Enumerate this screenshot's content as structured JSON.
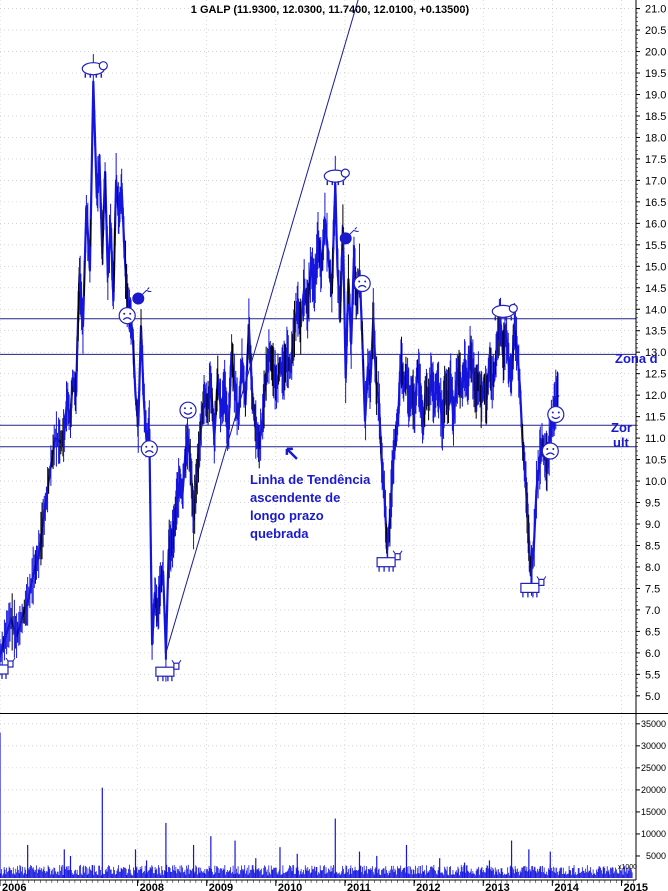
{
  "chart_data": {
    "type": "line",
    "title": "1 GALP (11.9300, 12.0300, 11.7400, 12.0100, +0.13500)",
    "price_axis": {
      "ylim": [
        4.6,
        21.2
      ],
      "ticks": [
        "5.0",
        "5.5",
        "6.0",
        "6.5",
        "7.0",
        "7.5",
        "8.0",
        "8.5",
        "9.0",
        "9.5",
        "10.0",
        "10.5",
        "11.0",
        "11.5",
        "12.0",
        "12.5",
        "13.0",
        "13.5",
        "14.0",
        "14.5",
        "15.0",
        "15.5",
        "16.0",
        "16.5",
        "17.0",
        "17.5",
        "18.0",
        "18.5",
        "19.0",
        "19.5",
        "20.0",
        "20.5",
        "21.0"
      ]
    },
    "volume_axis": {
      "ylim": [
        0,
        37000
      ],
      "ticks": [
        "5000",
        "10000",
        "15000",
        "20000",
        "25000",
        "30000",
        "35000"
      ],
      "unit_label": "x1000"
    },
    "x_axis": {
      "range": [
        2006.0,
        2015.2
      ],
      "years": [
        "2006",
        "2008",
        "2009",
        "2010",
        "2011",
        "2012",
        "2013",
        "2014",
        "2015"
      ]
    },
    "grid": true,
    "price_series": {
      "name": "GALP",
      "color": "#1515dd",
      "points": [
        [
          2006.0,
          5.9
        ],
        [
          2006.08,
          6.4
        ],
        [
          2006.16,
          6.8
        ],
        [
          2006.24,
          6.4
        ],
        [
          2006.32,
          6.8
        ],
        [
          2006.4,
          7.2
        ],
        [
          2006.48,
          7.8
        ],
        [
          2006.56,
          8.3
        ],
        [
          2006.64,
          9.2
        ],
        [
          2006.72,
          10.2
        ],
        [
          2006.8,
          11.0
        ],
        [
          2006.88,
          10.9
        ],
        [
          2006.93,
          11.1
        ],
        [
          2006.97,
          11.9
        ],
        [
          2007.02,
          11.4
        ],
        [
          2007.05,
          12.4
        ],
        [
          2007.1,
          12.0
        ],
        [
          2007.12,
          13.2
        ],
        [
          2007.15,
          14.8
        ],
        [
          2007.2,
          13.6
        ],
        [
          2007.25,
          16.4
        ],
        [
          2007.3,
          14.9
        ],
        [
          2007.35,
          19.3
        ],
        [
          2007.4,
          16.6
        ],
        [
          2007.44,
          17.4
        ],
        [
          2007.48,
          15.3
        ],
        [
          2007.52,
          17.2
        ],
        [
          2007.56,
          14.8
        ],
        [
          2007.6,
          16.0
        ],
        [
          2007.64,
          14.2
        ],
        [
          2007.68,
          17.0
        ],
        [
          2007.72,
          16.2
        ],
        [
          2007.76,
          16.8
        ],
        [
          2007.8,
          15.4
        ],
        [
          2007.84,
          14.2
        ],
        [
          2007.88,
          13.9
        ],
        [
          2007.92,
          13.4
        ],
        [
          2007.96,
          12.0
        ],
        [
          2008.0,
          11.3
        ],
        [
          2008.04,
          13.6
        ],
        [
          2008.08,
          11.9
        ],
        [
          2008.12,
          10.9
        ],
        [
          2008.16,
          11.2
        ],
        [
          2008.2,
          6.2
        ],
        [
          2008.24,
          7.4
        ],
        [
          2008.28,
          6.9
        ],
        [
          2008.32,
          7.6
        ],
        [
          2008.36,
          7.9
        ],
        [
          2008.4,
          6.0
        ],
        [
          2008.44,
          8.4
        ],
        [
          2008.48,
          8.5
        ],
        [
          2008.52,
          8.9
        ],
        [
          2008.56,
          9.6
        ],
        [
          2008.6,
          10.0
        ],
        [
          2008.64,
          9.7
        ],
        [
          2008.68,
          10.6
        ],
        [
          2008.72,
          11.0
        ],
        [
          2008.76,
          10.3
        ],
        [
          2008.8,
          9.1
        ],
        [
          2008.84,
          10.0
        ],
        [
          2008.88,
          10.7
        ],
        [
          2008.92,
          11.5
        ],
        [
          2008.96,
          12.0
        ],
        [
          2009.0,
          11.7
        ],
        [
          2009.05,
          12.3
        ],
        [
          2009.1,
          11.0
        ],
        [
          2009.15,
          12.4
        ],
        [
          2009.2,
          11.6
        ],
        [
          2009.25,
          12.2
        ],
        [
          2009.3,
          11.0
        ],
        [
          2009.35,
          13.0
        ],
        [
          2009.4,
          12.1
        ],
        [
          2009.45,
          11.5
        ],
        [
          2009.5,
          12.8
        ],
        [
          2009.55,
          11.8
        ],
        [
          2009.6,
          13.6
        ],
        [
          2009.65,
          12.0
        ],
        [
          2009.7,
          11.2
        ],
        [
          2009.75,
          10.8
        ],
        [
          2009.8,
          11.5
        ],
        [
          2009.85,
          12.5
        ],
        [
          2009.9,
          13.0
        ],
        [
          2009.95,
          12.6
        ],
        [
          2010.0,
          12.2
        ],
        [
          2010.05,
          12.7
        ],
        [
          2010.1,
          12.5
        ],
        [
          2010.15,
          12.9
        ],
        [
          2010.2,
          12.6
        ],
        [
          2010.25,
          13.4
        ],
        [
          2010.3,
          14.1
        ],
        [
          2010.35,
          13.6
        ],
        [
          2010.4,
          14.5
        ],
        [
          2010.45,
          14.0
        ],
        [
          2010.5,
          15.0
        ],
        [
          2010.55,
          14.5
        ],
        [
          2010.6,
          15.6
        ],
        [
          2010.65,
          14.9
        ],
        [
          2010.7,
          16.1
        ],
        [
          2010.75,
          15.2
        ],
        [
          2010.8,
          14.4
        ],
        [
          2010.85,
          16.9
        ],
        [
          2010.88,
          15.0
        ],
        [
          2010.92,
          13.9
        ],
        [
          2010.96,
          15.9
        ],
        [
          2011.0,
          12.4
        ],
        [
          2011.04,
          14.7
        ],
        [
          2011.08,
          13.2
        ],
        [
          2011.12,
          15.2
        ],
        [
          2011.16,
          14.1
        ],
        [
          2011.2,
          14.9
        ],
        [
          2011.24,
          13.4
        ],
        [
          2011.28,
          11.4
        ],
        [
          2011.32,
          12.6
        ],
        [
          2011.36,
          12.3
        ],
        [
          2011.4,
          13.8
        ],
        [
          2011.44,
          12.3
        ],
        [
          2011.48,
          11.9
        ],
        [
          2011.52,
          10.5
        ],
        [
          2011.56,
          9.7
        ],
        [
          2011.6,
          8.4
        ],
        [
          2011.64,
          9.1
        ],
        [
          2011.68,
          10.3
        ],
        [
          2011.72,
          11.0
        ],
        [
          2011.76,
          11.5
        ],
        [
          2011.8,
          12.9
        ],
        [
          2011.84,
          12.2
        ],
        [
          2011.88,
          12.5
        ],
        [
          2011.92,
          11.8
        ],
        [
          2011.96,
          12.1
        ],
        [
          2012.0,
          11.6
        ],
        [
          2012.04,
          12.6
        ],
        [
          2012.08,
          12.1
        ],
        [
          2012.12,
          11.2
        ],
        [
          2012.16,
          12.2
        ],
        [
          2012.2,
          11.9
        ],
        [
          2012.24,
          12.5
        ],
        [
          2012.28,
          11.8
        ],
        [
          2012.32,
          12.3
        ],
        [
          2012.36,
          12.0
        ],
        [
          2012.4,
          11.3
        ],
        [
          2012.44,
          12.2
        ],
        [
          2012.48,
          11.9
        ],
        [
          2012.52,
          12.4
        ],
        [
          2012.56,
          11.4
        ],
        [
          2012.6,
          12.3
        ],
        [
          2012.64,
          12.5
        ],
        [
          2012.68,
          12.1
        ],
        [
          2012.72,
          12.7
        ],
        [
          2012.76,
          12.2
        ],
        [
          2012.8,
          13.0
        ],
        [
          2012.84,
          12.6
        ],
        [
          2012.88,
          12.0
        ],
        [
          2012.92,
          12.4
        ],
        [
          2012.96,
          11.9
        ],
        [
          2013.0,
          12.2
        ],
        [
          2013.04,
          11.9
        ],
        [
          2013.08,
          12.8
        ],
        [
          2013.12,
          12.3
        ],
        [
          2013.16,
          12.6
        ],
        [
          2013.2,
          13.4
        ],
        [
          2013.24,
          13.7
        ],
        [
          2013.28,
          12.9
        ],
        [
          2013.32,
          13.5
        ],
        [
          2013.36,
          12.7
        ],
        [
          2013.4,
          12.4
        ],
        [
          2013.44,
          13.6
        ],
        [
          2013.48,
          13.1
        ],
        [
          2013.52,
          12.2
        ],
        [
          2013.56,
          10.9
        ],
        [
          2013.6,
          10.1
        ],
        [
          2013.64,
          8.9
        ],
        [
          2013.68,
          7.8
        ],
        [
          2013.72,
          8.4
        ],
        [
          2013.76,
          9.8
        ],
        [
          2013.8,
          10.4
        ],
        [
          2013.84,
          10.9
        ],
        [
          2013.88,
          10.6
        ],
        [
          2013.92,
          10.4
        ],
        [
          2013.96,
          11.1
        ],
        [
          2014.0,
          11.5
        ],
        [
          2014.04,
          11.9
        ],
        [
          2014.08,
          12.0
        ]
      ]
    },
    "trendline": {
      "from": [
        2008.4,
        6.0
      ],
      "to": [
        2011.18,
        21.2
      ]
    },
    "horizontal_lines": [
      13.78,
      12.95,
      11.3,
      10.8
    ],
    "volume_series": {
      "color": "#1515dd",
      "spikes": [
        [
          2006.0,
          33000
        ],
        [
          2006.4,
          7500
        ],
        [
          2006.93,
          6500
        ],
        [
          2007.02,
          5000
        ],
        [
          2007.48,
          20500
        ],
        [
          2007.96,
          6500
        ],
        [
          2008.12,
          4000
        ],
        [
          2008.4,
          12500
        ],
        [
          2008.8,
          7500
        ],
        [
          2009.05,
          9500
        ],
        [
          2009.4,
          8500
        ],
        [
          2009.7,
          4500
        ],
        [
          2010.05,
          7000
        ],
        [
          2010.3,
          5500
        ],
        [
          2010.85,
          13500
        ],
        [
          2011.2,
          6000
        ],
        [
          2011.45,
          5000
        ],
        [
          2011.88,
          7500
        ],
        [
          2012.36,
          4500
        ],
        [
          2012.72,
          3500
        ],
        [
          2013.08,
          4000
        ],
        [
          2013.4,
          8500
        ],
        [
          2013.65,
          6500
        ],
        [
          2013.96,
          6000
        ]
      ],
      "baseline": 1500
    },
    "annotations": {
      "trendline_text": [
        "Linha de Tendência",
        "ascendente de",
        "longo prazo",
        "quebrada"
      ],
      "zone_text_1": "Zona d",
      "zone_text_2a": "Zor",
      "zone_text_2b": "ult"
    },
    "markers": [
      {
        "icon": "bear-icon",
        "x": 2007.35,
        "y": 19.6
      },
      {
        "icon": "bear-icon",
        "x": 2010.85,
        "y": 17.1
      },
      {
        "icon": "bear-icon",
        "x": 2013.28,
        "y": 13.95
      },
      {
        "icon": "bull-icon",
        "x": 2006.0,
        "y": 5.6
      },
      {
        "icon": "bull-icon",
        "x": 2008.4,
        "y": 5.55
      },
      {
        "icon": "bull-icon",
        "x": 2011.6,
        "y": 8.1
      },
      {
        "icon": "bull-icon",
        "x": 2013.68,
        "y": 7.5
      },
      {
        "icon": "sad-face-icon",
        "x": 2007.84,
        "y": 13.85
      },
      {
        "icon": "sad-face-icon",
        "x": 2008.16,
        "y": 10.75
      },
      {
        "icon": "sad-face-icon",
        "x": 2011.24,
        "y": 14.6
      },
      {
        "icon": "sad-face-icon",
        "x": 2013.96,
        "y": 10.7
      },
      {
        "icon": "smile-face-icon",
        "x": 2008.72,
        "y": 11.65
      },
      {
        "icon": "smile-face-icon",
        "x": 2014.04,
        "y": 11.55
      },
      {
        "icon": "bomb-icon",
        "x": 2008.0,
        "y": 14.25
      },
      {
        "icon": "bomb-icon",
        "x": 2011.0,
        "y": 15.65
      }
    ]
  }
}
